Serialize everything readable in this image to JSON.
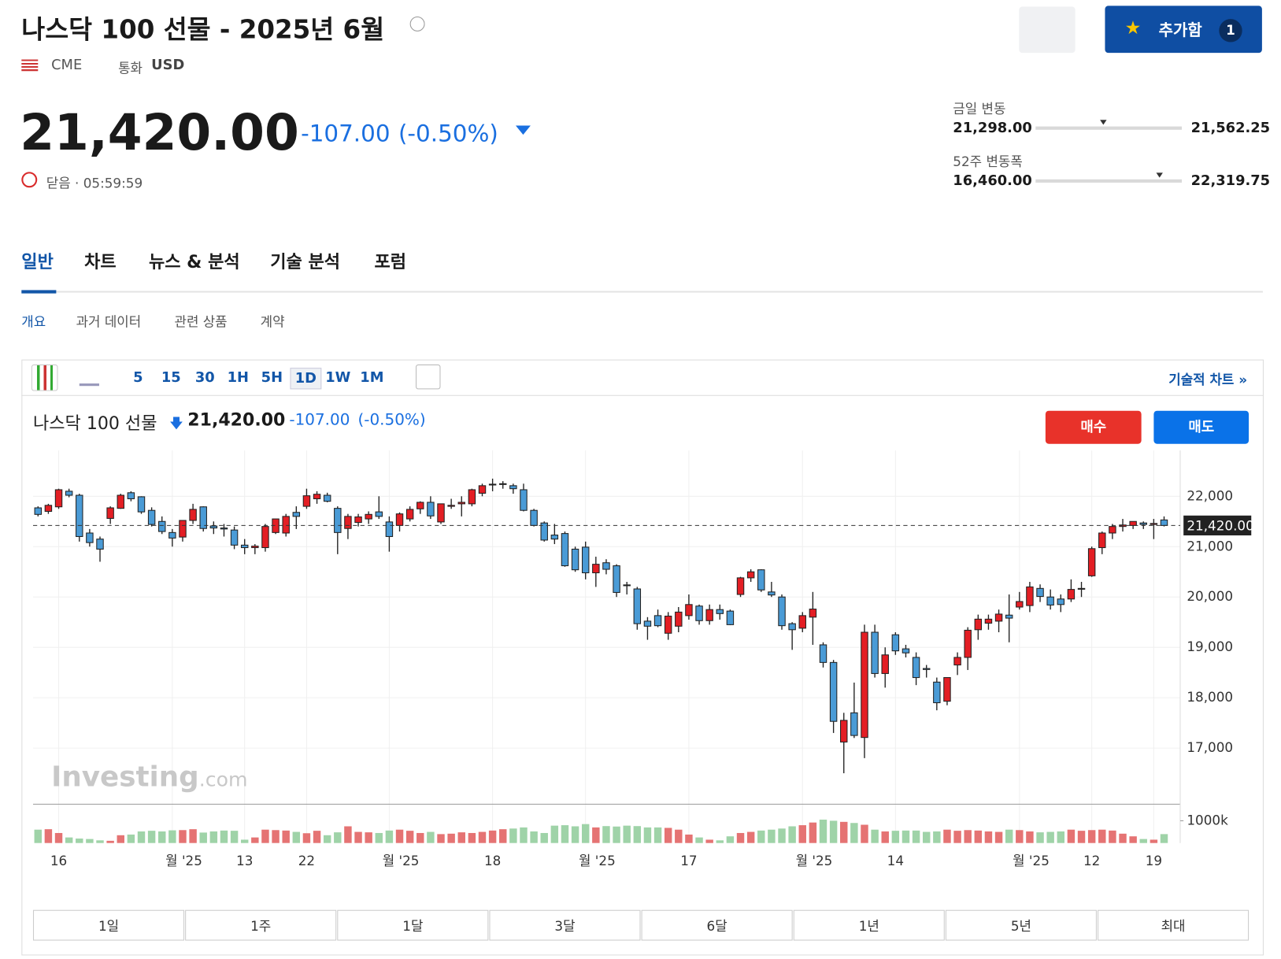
{
  "header": {
    "title": "나스닥 100 선물 - 2025년 6월",
    "exchange": "CME",
    "currency_label": "통화",
    "currency": "USD",
    "price": "21,420.00",
    "change": "-107.00",
    "change_pct": "(-0.50%)",
    "status": "닫음 · 05:59:59",
    "add_button": "추가함",
    "add_count": "1"
  },
  "ranges": [
    {
      "label": "금일 변동",
      "low": "21,298.00",
      "high": "21,562.25"
    },
    {
      "label": "52주 변동폭",
      "low": "16,460.00",
      "high": "22,319.75"
    }
  ],
  "tabs": [
    "일반",
    "차트",
    "뉴스 & 분석",
    "기술 분석",
    "포럼"
  ],
  "subtabs": [
    "개요",
    "과거 데이터",
    "관련 상품",
    "계약"
  ],
  "toolbar": {
    "intervals": [
      "5",
      "15",
      "30",
      "1H",
      "5H",
      "1D",
      "1W",
      "1M"
    ],
    "technical_link": "기술적 차트 »"
  },
  "chart_header": {
    "name": "나스닥 100 선물",
    "price": "21,420.00",
    "change": "-107.00",
    "change_pct": "(-0.50%)",
    "buy": "매수",
    "sell": "매도"
  },
  "watermark": {
    "brand": "Investing",
    "suffix": ".com"
  },
  "periods": [
    "1일",
    "1주",
    "1달",
    "3달",
    "6달",
    "1년",
    "5년",
    "최대"
  ],
  "chart_data": {
    "type": "candlestick",
    "up_color": "#e31e24",
    "down_color": "#4a9bd6",
    "volume_up_color": "#e57373",
    "volume_down_color": "#9fd3a8",
    "grid": true,
    "categories": [
      null,
      null,
      "16",
      null,
      null,
      null,
      null,
      null,
      null,
      null,
      null,
      null,
      null,
      "월 '25",
      null,
      null,
      null,
      null,
      null,
      null,
      "13",
      null,
      null,
      null,
      null,
      null,
      "22",
      null,
      null,
      null,
      null,
      null,
      null,
      null,
      "월 '25",
      null,
      null,
      null,
      null,
      null,
      null,
      null,
      null,
      null,
      "18",
      null,
      null,
      null,
      null,
      null,
      null,
      null,
      null,
      "월 '25",
      null,
      null,
      null,
      null,
      null,
      null,
      null,
      null,
      null,
      "17",
      null,
      null,
      null,
      null,
      null,
      null,
      null,
      null,
      null,
      null,
      "월 '25",
      null,
      null,
      null,
      null,
      null,
      null,
      null,
      null,
      "14",
      null,
      null,
      null,
      null,
      null,
      null,
      null,
      null,
      null,
      null,
      null,
      "월 '25",
      null,
      null,
      null,
      null,
      null,
      null,
      "12",
      null,
      null,
      null,
      null,
      null,
      "19",
      null
    ],
    "open": [
      21770,
      21700,
      21790,
      22100,
      22020,
      21270,
      21150,
      21560,
      21760,
      22070,
      21990,
      21720,
      21500,
      21280,
      21190,
      21520,
      21790,
      21410,
      21370,
      21330,
      21030,
      20980,
      20980,
      21280,
      21270,
      21680,
      21800,
      21950,
      22020,
      21760,
      21360,
      21480,
      21550,
      21690,
      21490,
      21420,
      21550,
      21750,
      21880,
      21490,
      21800,
      21850,
      21850,
      22060,
      22230,
      22240,
      22210,
      22130,
      21720,
      21470,
      21230,
      21260,
      20950,
      20990,
      20480,
      20680,
      20620,
      20240,
      20160,
      19520,
      19630,
      19280,
      19420,
      19630,
      19820,
      19530,
      19750,
      19720,
      20050,
      20380,
      20540,
      20100,
      20000,
      19470,
      19380,
      19600,
      19050,
      18700,
      17120,
      17700,
      17210,
      19300,
      18480,
      19250,
      18970,
      18800,
      18580,
      18310,
      17930,
      18650,
      18800,
      19350,
      19480,
      19520,
      19640,
      19800,
      19830,
      20170,
      20000,
      19960,
      19960,
      20160,
      20420,
      20980,
      21270,
      21400,
      21420,
      21470,
      21440,
      21530
    ],
    "high": [
      21800,
      21850,
      22150,
      22150,
      22050,
      21350,
      21200,
      21800,
      22050,
      22100,
      22000,
      21780,
      21600,
      21350,
      21500,
      21850,
      21800,
      21500,
      21450,
      21400,
      21150,
      21050,
      21450,
      21550,
      21650,
      21800,
      22150,
      22100,
      22070,
      21800,
      21650,
      21650,
      21700,
      22000,
      21600,
      21680,
      21800,
      21900,
      22000,
      21850,
      21950,
      22000,
      22150,
      22250,
      22350,
      22300,
      22250,
      22250,
      21750,
      21500,
      21450,
      21300,
      21000,
      21100,
      20800,
      20750,
      20650,
      20300,
      20200,
      19600,
      19750,
      19700,
      19800,
      20050,
      19850,
      19850,
      19850,
      19750,
      20400,
      20550,
      20550,
      20300,
      20050,
      19500,
      19700,
      20100,
      19100,
      18750,
      17700,
      18300,
      19450,
      19450,
      19000,
      19300,
      19050,
      18900,
      18650,
      18400,
      18400,
      18900,
      19400,
      19650,
      19650,
      19750,
      20050,
      20100,
      20300,
      20250,
      20150,
      20050,
      20350,
      20300,
      21000,
      21300,
      21450,
      21550,
      21500,
      21500,
      21550,
      21600
    ],
    "low": [
      21600,
      21650,
      21750,
      21980,
      21100,
      21000,
      20700,
      21450,
      21750,
      21900,
      21650,
      21400,
      21250,
      21000,
      21100,
      21450,
      21300,
      21250,
      21200,
      20950,
      20850,
      20850,
      20900,
      21250,
      21200,
      21350,
      21750,
      21850,
      21880,
      20850,
      21150,
      21400,
      21450,
      21550,
      20900,
      21300,
      21500,
      21650,
      21550,
      21450,
      21750,
      21600,
      21800,
      22000,
      22100,
      22150,
      22050,
      21700,
      21400,
      21100,
      21050,
      20600,
      20500,
      20350,
      20200,
      20450,
      20000,
      20050,
      19350,
      19150,
      19400,
      19150,
      19300,
      19550,
      19450,
      19450,
      19550,
      19440,
      20000,
      20300,
      20100,
      20000,
      19350,
      18950,
      19300,
      19050,
      18600,
      17300,
      16500,
      17200,
      16800,
      18400,
      18200,
      18850,
      18800,
      18250,
      18400,
      17750,
      17850,
      18450,
      18550,
      19150,
      19350,
      19300,
      19100,
      19750,
      19700,
      19900,
      19750,
      19700,
      19900,
      20000,
      20400,
      20850,
      21150,
      21300,
      21350,
      21350,
      21150,
      21400
    ],
    "close": [
      21640,
      21820,
      22130,
      22020,
      21200,
      21080,
      20950,
      21770,
      22020,
      21950,
      21690,
      21440,
      21300,
      21170,
      21520,
      21740,
      21360,
      21370,
      21350,
      21030,
      20980,
      21010,
      21400,
      21550,
      21600,
      21600,
      22010,
      22040,
      21900,
      21280,
      21600,
      21590,
      21640,
      21600,
      21200,
      21650,
      21740,
      21880,
      21610,
      21850,
      21820,
      21880,
      22130,
      22210,
      22240,
      22250,
      22150,
      21720,
      21420,
      21130,
      21150,
      20620,
      20540,
      20480,
      20650,
      20550,
      20090,
      20230,
      19470,
      19420,
      19430,
      19620,
      19700,
      19850,
      19530,
      19750,
      19670,
      19450,
      20380,
      20500,
      20140,
      20040,
      19430,
      19350,
      19630,
      19760,
      18700,
      17530,
      17550,
      17250,
      19300,
      18480,
      18850,
      18930,
      18890,
      18400,
      18560,
      17900,
      18400,
      18800,
      19340,
      19560,
      19560,
      19660,
      19580,
      19910,
      20200,
      20010,
      19840,
      19850,
      20150,
      20170,
      20960,
      21270,
      21400,
      21430,
      21500,
      21440,
      21460,
      21420
    ],
    "volume": [
      600,
      620,
      450,
      250,
      200,
      180,
      120,
      100,
      350,
      380,
      520,
      550,
      520,
      570,
      580,
      620,
      470,
      520,
      560,
      550,
      150,
      250,
      600,
      580,
      560,
      500,
      440,
      550,
      350,
      480,
      750,
      500,
      480,
      450,
      560,
      600,
      550,
      450,
      500,
      400,
      420,
      480,
      450,
      500,
      560,
      620,
      650,
      700,
      520,
      450,
      780,
      800,
      750,
      850,
      700,
      760,
      740,
      780,
      760,
      700,
      700,
      680,
      600,
      380,
      250,
      150,
      120,
      300,
      450,
      500,
      560,
      600,
      650,
      750,
      800,
      920,
      1050,
      1000,
      950,
      900,
      820,
      600,
      520,
      550,
      560,
      560,
      500,
      520,
      600,
      550,
      580,
      560,
      520,
      500,
      600,
      580,
      520,
      480,
      500,
      520,
      600,
      550,
      580,
      600,
      560,
      420,
      300,
      180,
      150,
      400
    ],
    "ylim": [
      15935,
      22910
    ],
    "yticks": [
      {
        "value": 17000,
        "label": "17,000"
      },
      {
        "value": 18000,
        "label": "18,000"
      },
      {
        "value": 19000,
        "label": "19,000"
      },
      {
        "value": 20000,
        "label": "20,000"
      },
      {
        "value": 21000,
        "label": "21,000"
      },
      {
        "value": 22000,
        "label": "22,000"
      }
    ],
    "last_price": {
      "value": 21420,
      "label": "21,420.00"
    },
    "volume_ylim": [
      0,
      1670
    ],
    "volume_ticks": [
      {
        "value": 1000,
        "label": "1000k"
      }
    ]
  }
}
